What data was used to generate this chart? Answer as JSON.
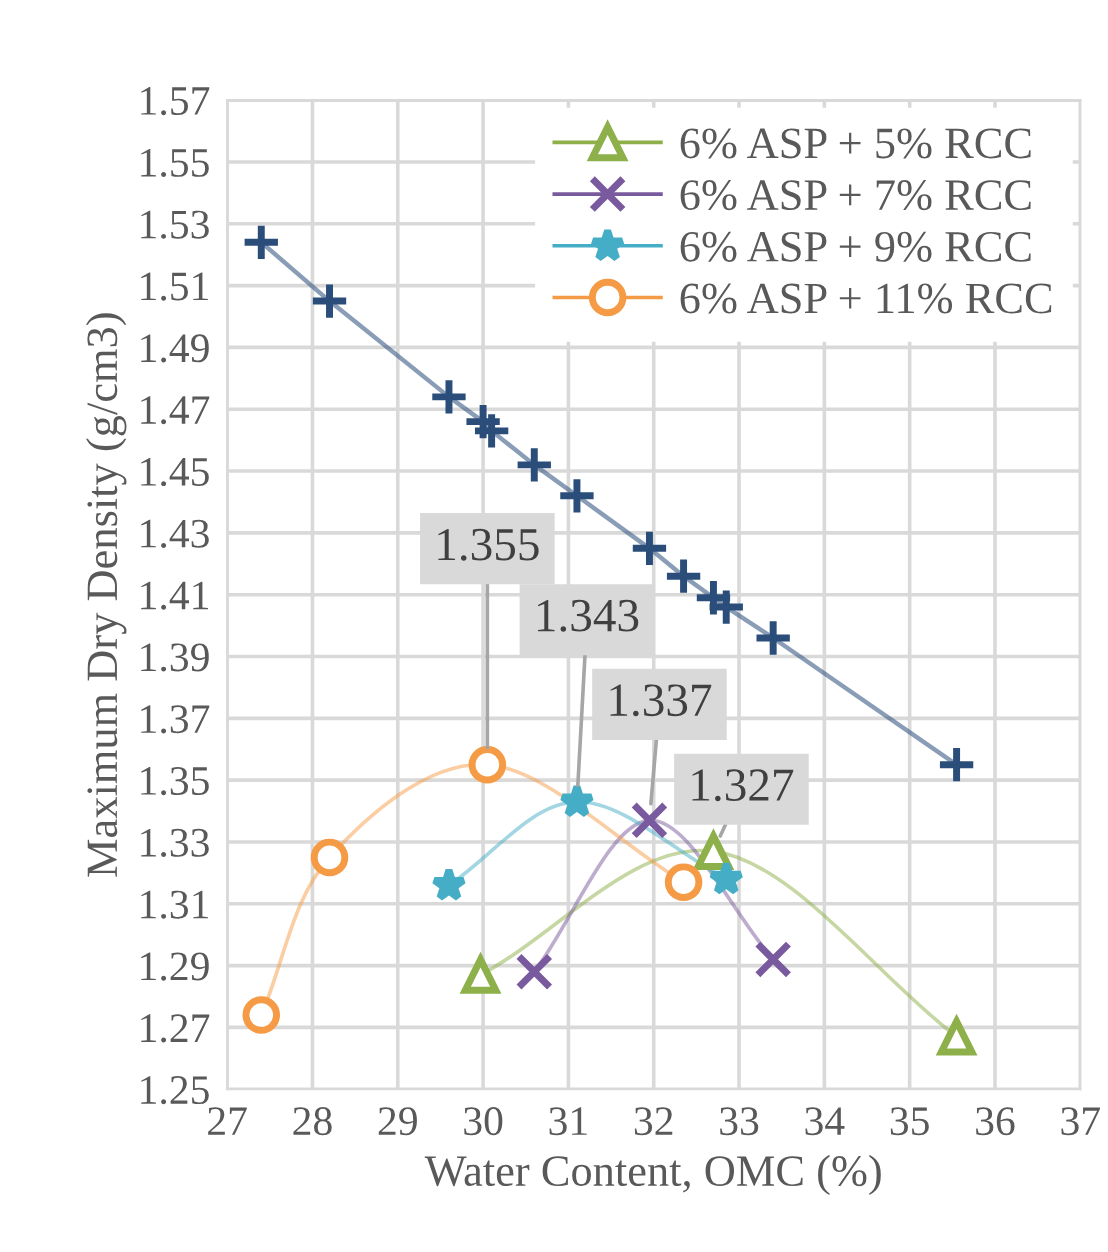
{
  "chart_data": {
    "type": "line",
    "xlabel": "Water Content, OMC (%)",
    "ylabel": "Maximum Dry Density (g/cm3)",
    "xlim": [
      27,
      37
    ],
    "xticks": [
      27,
      28,
      29,
      30,
      31,
      32,
      33,
      34,
      35,
      36,
      37
    ],
    "ylim": [
      1.25,
      1.57
    ],
    "yticks": [
      {
        "value": 1.25,
        "label": "1.25"
      },
      {
        "value": 1.27,
        "label": "1.27"
      },
      {
        "value": 1.29,
        "label": "1.29"
      },
      {
        "value": 1.31,
        "label": "1.31"
      },
      {
        "value": 1.33,
        "label": "1.33"
      },
      {
        "value": 1.35,
        "label": "1.35"
      },
      {
        "value": 1.37,
        "label": "1.37"
      },
      {
        "value": 1.39,
        "label": "1.39"
      },
      {
        "value": 1.41,
        "label": "1.41"
      },
      {
        "value": 1.43,
        "label": "1.43"
      },
      {
        "value": 1.45,
        "label": "1.45"
      },
      {
        "value": 1.47,
        "label": "1.47"
      },
      {
        "value": 1.49,
        "label": "1.49"
      },
      {
        "value": 1.51,
        "label": "1.51"
      },
      {
        "value": 1.53,
        "label": "1.53"
      },
      {
        "value": 1.55,
        "label": "1.55"
      },
      {
        "value": 1.57,
        "label": "1.57"
      }
    ],
    "grid": true,
    "legend": "top right",
    "series": [
      {
        "name": "6% ASP + 5% RCC",
        "color": "#8db04a",
        "marker": "triangle",
        "x": [
          29.97,
          32.7,
          35.55
        ],
        "values": [
          1.287,
          1.327,
          1.267
        ]
      },
      {
        "name": "6% ASP + 7% RCC",
        "color": "#7a5a9e",
        "marker": "cross",
        "x": [
          30.6,
          31.95,
          33.4
        ],
        "values": [
          1.288,
          1.337,
          1.292
        ]
      },
      {
        "name": "6% ASP + 9% RCC",
        "color": "#45aec6",
        "marker": "star",
        "x": [
          29.6,
          31.1,
          32.85
        ],
        "values": [
          1.316,
          1.343,
          1.318
        ]
      },
      {
        "name": "6% ASP + 11% RCC",
        "color": "#f59b45",
        "marker": "circle",
        "x": [
          27.4,
          28.2,
          30.05,
          32.35
        ],
        "values": [
          1.274,
          1.325,
          1.355,
          1.317
        ]
      },
      {
        "color": "#2a4d7a",
        "marker": "cross",
        "line_style": "solid",
        "x": [
          27.4,
          28.2,
          29.6,
          30.0,
          30.1,
          30.6,
          31.1,
          31.95,
          32.35,
          32.7,
          32.85,
          33.4,
          35.55
        ],
        "values": [
          1.524,
          1.505,
          1.474,
          1.466,
          1.463,
          1.452,
          1.442,
          1.425,
          1.416,
          1.409,
          1.406,
          1.396,
          1.355
        ]
      }
    ],
    "annotations": [
      {
        "text": "1.355",
        "x": 30.05,
        "y": 1.355
      },
      {
        "text": "1.343",
        "x": 31.1,
        "y": 1.343
      },
      {
        "text": "1.337",
        "x": 31.95,
        "y": 1.337
      },
      {
        "text": "1.327",
        "x": 32.7,
        "y": 1.327
      }
    ]
  }
}
